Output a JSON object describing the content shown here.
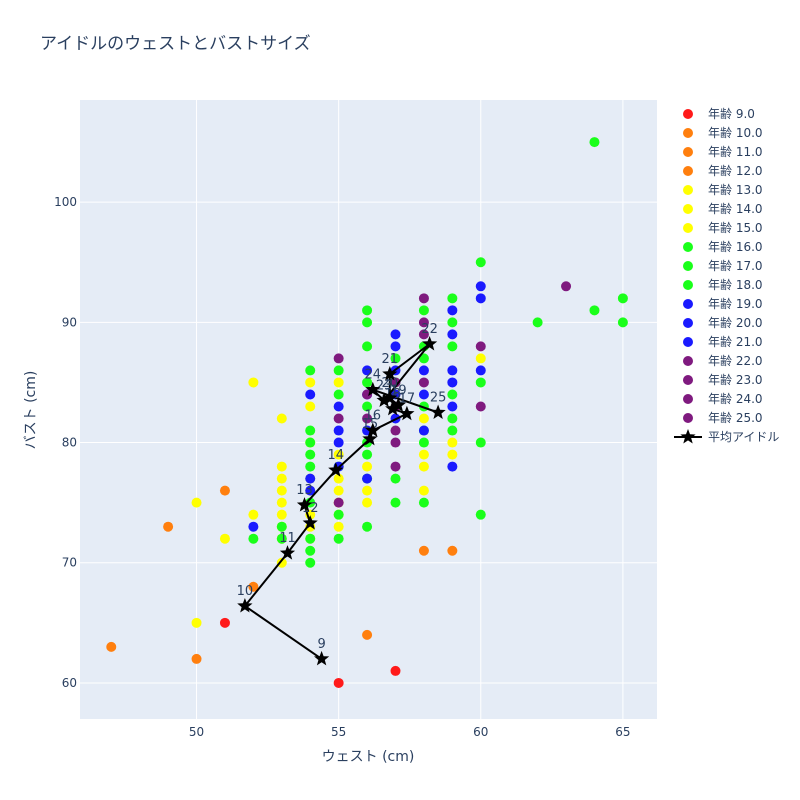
{
  "chart_data": {
    "type": "scatter",
    "title": "アイドルのウェストとバストサイズ",
    "xlabel": "ウェスト (cm)",
    "ylabel": "バスト (cm)",
    "xlim": [
      45.9,
      66.2
    ],
    "ylim": [
      57,
      108.5
    ],
    "xticks": [
      50,
      55,
      60,
      65
    ],
    "yticks": [
      60,
      70,
      80,
      90,
      100
    ],
    "grid": true,
    "legend_position": "right",
    "series": [
      {
        "name": "年齢 9.0",
        "color": "#ff1a1a",
        "points": [
          [
            51,
            65
          ],
          [
            55,
            60
          ],
          [
            57,
            61
          ]
        ]
      },
      {
        "name": "年齢 10.0",
        "color": "#ff7f0e",
        "points": [
          [
            47,
            63
          ],
          [
            49,
            73
          ],
          [
            50,
            62
          ],
          [
            51,
            76
          ],
          [
            52,
            68
          ],
          [
            56,
            64
          ],
          [
            58,
            71
          ],
          [
            59,
            71
          ]
        ]
      },
      {
        "name": "年齢 11.0",
        "color": "#ff7f0e",
        "points": []
      },
      {
        "name": "年齢 12.0",
        "color": "#ff7f0e",
        "points": []
      },
      {
        "name": "年齢 13.0",
        "color": "#ffff00",
        "points": [
          [
            50,
            75
          ],
          [
            50,
            65
          ],
          [
            51,
            72
          ],
          [
            52,
            85
          ],
          [
            52,
            74
          ],
          [
            53,
            78
          ],
          [
            53,
            77
          ],
          [
            53,
            76
          ],
          [
            53,
            75
          ],
          [
            53,
            74
          ],
          [
            53,
            73
          ],
          [
            53,
            72
          ],
          [
            53,
            70
          ],
          [
            53,
            82
          ],
          [
            54,
            85
          ],
          [
            54,
            83
          ],
          [
            54,
            80
          ],
          [
            54,
            77
          ],
          [
            54,
            76
          ],
          [
            54,
            74
          ],
          [
            54,
            73
          ],
          [
            54,
            72
          ],
          [
            55,
            85
          ],
          [
            55,
            79
          ],
          [
            55,
            77
          ],
          [
            55,
            76
          ],
          [
            55,
            75
          ],
          [
            55,
            74
          ],
          [
            55,
            73
          ],
          [
            56,
            78
          ],
          [
            56,
            76
          ],
          [
            56,
            75
          ],
          [
            57,
            84
          ],
          [
            57,
            83
          ],
          [
            58,
            79
          ],
          [
            58,
            78
          ],
          [
            58,
            76
          ],
          [
            58,
            82
          ],
          [
            59,
            80
          ],
          [
            59,
            79
          ],
          [
            60,
            87
          ]
        ]
      },
      {
        "name": "年齢 14.0",
        "color": "#ffff00",
        "points": []
      },
      {
        "name": "年齢 15.0",
        "color": "#ffff00",
        "points": []
      },
      {
        "name": "年齢 16.0",
        "color": "#1aff1a",
        "points": [
          [
            52,
            72
          ],
          [
            53,
            73
          ],
          [
            53,
            72
          ],
          [
            54,
            86
          ],
          [
            54,
            81
          ],
          [
            54,
            80
          ],
          [
            54,
            79
          ],
          [
            54,
            78
          ],
          [
            54,
            75
          ],
          [
            54,
            72
          ],
          [
            54,
            71
          ],
          [
            54,
            70
          ],
          [
            55,
            86
          ],
          [
            55,
            84
          ],
          [
            55,
            78
          ],
          [
            55,
            74
          ],
          [
            55,
            72
          ],
          [
            56,
            91
          ],
          [
            56,
            90
          ],
          [
            56,
            88
          ],
          [
            56,
            85
          ],
          [
            56,
            83
          ],
          [
            56,
            80
          ],
          [
            56,
            79
          ],
          [
            56,
            77
          ],
          [
            56,
            73
          ],
          [
            57,
            87
          ],
          [
            57,
            85
          ],
          [
            57,
            83
          ],
          [
            57,
            77
          ],
          [
            57,
            75
          ],
          [
            58,
            91
          ],
          [
            58,
            88
          ],
          [
            58,
            87
          ],
          [
            58,
            83
          ],
          [
            58,
            81
          ],
          [
            58,
            80
          ],
          [
            58,
            75
          ],
          [
            59,
            92
          ],
          [
            59,
            90
          ],
          [
            59,
            88
          ],
          [
            59,
            84
          ],
          [
            59,
            82
          ],
          [
            59,
            81
          ],
          [
            60,
            95
          ],
          [
            60,
            85
          ],
          [
            60,
            80
          ],
          [
            60,
            74
          ],
          [
            62,
            90
          ],
          [
            64,
            105
          ],
          [
            64,
            91
          ],
          [
            65,
            92
          ],
          [
            65,
            90
          ]
        ]
      },
      {
        "name": "年齢 17.0",
        "color": "#1aff1a",
        "points": []
      },
      {
        "name": "年齢 18.0",
        "color": "#1aff1a",
        "points": []
      },
      {
        "name": "年齢 19.0",
        "color": "#1a1aff",
        "points": [
          [
            52,
            73
          ],
          [
            54,
            84
          ],
          [
            54,
            77
          ],
          [
            54,
            76
          ],
          [
            55,
            83
          ],
          [
            55,
            81
          ],
          [
            55,
            80
          ],
          [
            55,
            78
          ],
          [
            56,
            86
          ],
          [
            56,
            84
          ],
          [
            56,
            81
          ],
          [
            56,
            77
          ],
          [
            57,
            89
          ],
          [
            57,
            88
          ],
          [
            57,
            86
          ],
          [
            57,
            84
          ],
          [
            57,
            82
          ],
          [
            58,
            86
          ],
          [
            58,
            84
          ],
          [
            58,
            81
          ],
          [
            59,
            91
          ],
          [
            59,
            89
          ],
          [
            59,
            86
          ],
          [
            59,
            85
          ],
          [
            59,
            83
          ],
          [
            59,
            78
          ],
          [
            60,
            93
          ],
          [
            60,
            92
          ],
          [
            60,
            86
          ]
        ]
      },
      {
        "name": "年齢 20.0",
        "color": "#1a1aff",
        "points": []
      },
      {
        "name": "年齢 21.0",
        "color": "#1a1aff",
        "points": []
      },
      {
        "name": "年齢 22.0",
        "color": "#7f1a7f",
        "points": [
          [
            55,
            87
          ],
          [
            55,
            82
          ],
          [
            55,
            75
          ],
          [
            56,
            84
          ],
          [
            56,
            82
          ],
          [
            57,
            85
          ],
          [
            57,
            83
          ],
          [
            57,
            81
          ],
          [
            57,
            80
          ],
          [
            57,
            78
          ],
          [
            58,
            92
          ],
          [
            58,
            90
          ],
          [
            58,
            89
          ],
          [
            58,
            85
          ],
          [
            60,
            88
          ],
          [
            60,
            83
          ],
          [
            63,
            93
          ]
        ]
      },
      {
        "name": "年齢 23.0",
        "color": "#7f1a7f",
        "points": []
      },
      {
        "name": "年齢 24.0",
        "color": "#7f1a7f",
        "points": []
      },
      {
        "name": "年齢 25.0",
        "color": "#7f1a7f",
        "points": []
      }
    ],
    "mean_line": {
      "name": "平均アイドル",
      "color": "#000000",
      "points": [
        {
          "label": "9",
          "x": 54.4,
          "y": 62.0
        },
        {
          "label": "10",
          "x": 51.7,
          "y": 66.4
        },
        {
          "label": "11",
          "x": 53.2,
          "y": 70.8
        },
        {
          "label": "12",
          "x": 54.0,
          "y": 73.3
        },
        {
          "label": "13",
          "x": 53.8,
          "y": 74.8
        },
        {
          "label": "14",
          "x": 54.9,
          "y": 77.7
        },
        {
          "label": "15",
          "x": 56.1,
          "y": 80.3
        },
        {
          "label": "16",
          "x": 56.2,
          "y": 81.0
        },
        {
          "label": "17",
          "x": 57.4,
          "y": 82.4
        },
        {
          "label": "18",
          "x": 56.9,
          "y": 82.8
        },
        {
          "label": "19",
          "x": 57.1,
          "y": 83.1
        },
        {
          "label": "20",
          "x": 56.8,
          "y": 83.7
        },
        {
          "label": "21",
          "x": 56.8,
          "y": 85.7
        },
        {
          "label": "22",
          "x": 58.2,
          "y": 88.2
        },
        {
          "label": "23",
          "x": 56.6,
          "y": 83.5
        },
        {
          "label": "24",
          "x": 56.2,
          "y": 84.4
        },
        {
          "label": "25",
          "x": 58.5,
          "y": 82.5
        }
      ]
    }
  }
}
